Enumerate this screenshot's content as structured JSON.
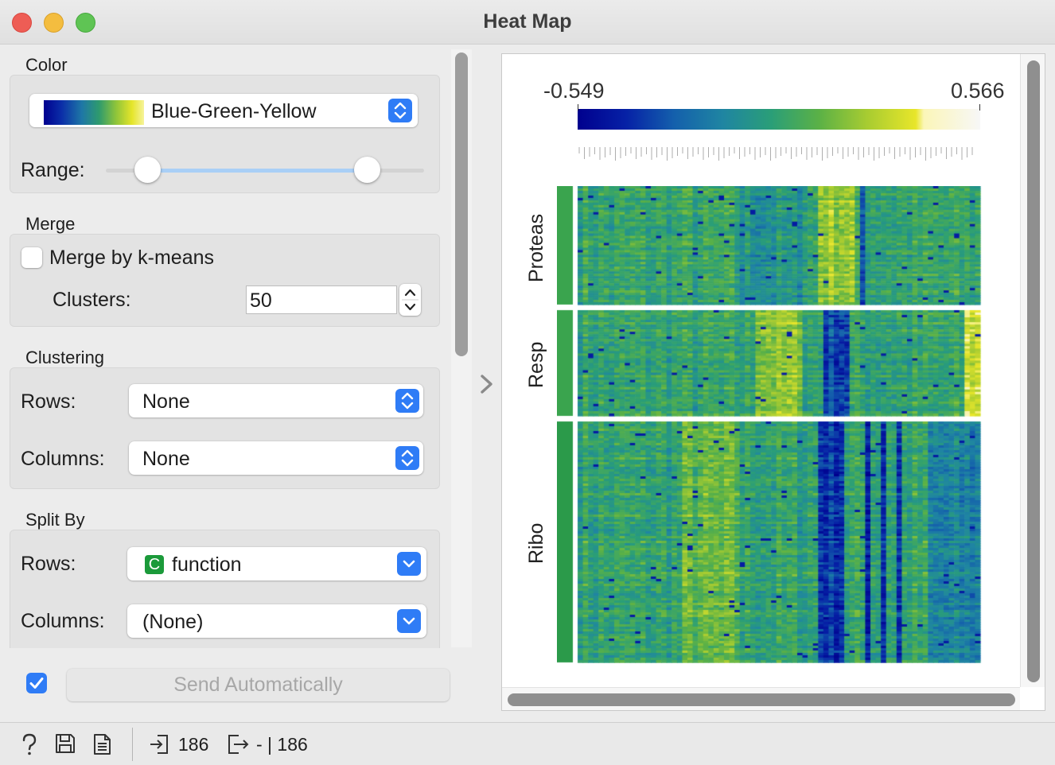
{
  "window": {
    "title": "Heat Map"
  },
  "color": {
    "section_title": "Color",
    "palette": "Blue-Green-Yellow",
    "range_label": "Range:",
    "range_low_fraction": 0.13,
    "range_high_fraction": 0.82
  },
  "merge": {
    "section_title": "Merge",
    "checkbox_label": "Merge by k-means",
    "checked": false,
    "clusters_label": "Clusters:",
    "clusters_value": "50"
  },
  "clustering": {
    "section_title": "Clustering",
    "rows_label": "Rows:",
    "rows_value": "None",
    "columns_label": "Columns:",
    "columns_value": "None"
  },
  "split_by": {
    "section_title": "Split By",
    "rows_label": "Rows:",
    "rows_badge": "C",
    "rows_value": "function",
    "columns_label": "Columns:",
    "columns_value": "(None)"
  },
  "commit": {
    "auto_checked": true,
    "button_label": "Send Automatically"
  },
  "plot": {
    "legend_min": "-0.549",
    "legend_max": "0.566",
    "groups": [
      "Proteas",
      "Resp",
      "Ribo"
    ],
    "colors": {
      "low": "#00008e",
      "mid": "#2a9e78",
      "high": "#e8e62a",
      "top": "#f7f7f7"
    }
  },
  "status": {
    "input_count": "186",
    "output_count": "- | 186"
  }
}
